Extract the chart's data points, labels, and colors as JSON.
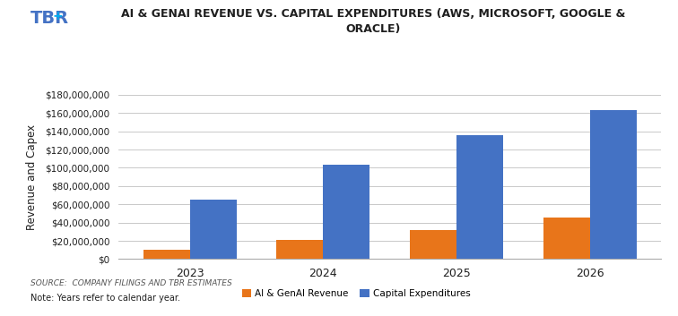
{
  "title": "AI & GENAI REVENUE VS. CAPITAL EXPENDITURES (AWS, MICROSOFT, GOOGLE &\nORACLE)",
  "ylabel": "Revenue and Capex",
  "years": [
    "2023",
    "2024",
    "2025",
    "2026"
  ],
  "ai_revenue": [
    10000000,
    21000000,
    32000000,
    46000000
  ],
  "capex": [
    65000000,
    103000000,
    136000000,
    163000000
  ],
  "ai_color": "#E8751A",
  "capex_color": "#4472C4",
  "ylim": [
    0,
    180000000
  ],
  "yticks": [
    0,
    20000000,
    40000000,
    60000000,
    80000000,
    100000000,
    120000000,
    140000000,
    160000000,
    180000000
  ],
  "source_text": "SOURCE:  COMPANY FILINGS AND TBR ESTIMATES",
  "note_text": "Note: Years refer to calendar year.",
  "legend_ai": "AI & GenAI Revenue",
  "legend_capex": "Capital Expenditures",
  "bg_color": "#FFFFFF",
  "bar_width": 0.35,
  "tbr_color": "#4472C4",
  "title_color": "#1F1F1F",
  "axis_label_color": "#1F1F1F",
  "tick_color": "#1F1F1F",
  "grid_color": "#C0C0C0",
  "source_color": "#555555",
  "note_color": "#1F1F1F"
}
